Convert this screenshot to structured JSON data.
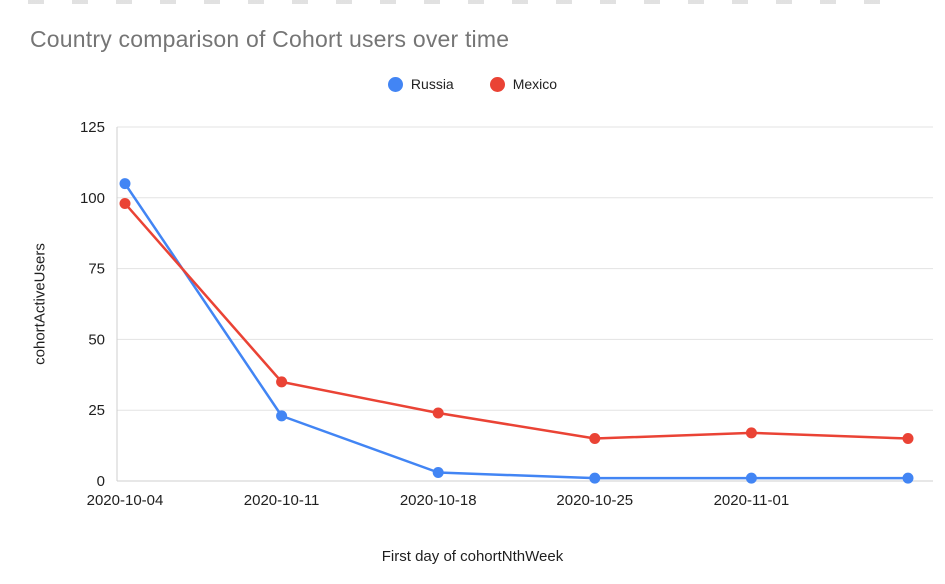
{
  "chart_data": {
    "type": "line",
    "title": "Country comparison of Cohort users over time",
    "xlabel": "First day of cohortNthWeek",
    "ylabel": "cohortActiveUsers",
    "categories": [
      "2020-10-04",
      "2020-10-11",
      "2020-10-18",
      "2020-10-25",
      "2020-11-01",
      ""
    ],
    "series": [
      {
        "name": "Russia",
        "color": "#4285f4",
        "values": [
          105,
          23,
          3,
          1,
          1,
          1
        ]
      },
      {
        "name": "Mexico",
        "color": "#ea4335",
        "values": [
          98,
          35,
          24,
          15,
          17,
          15
        ]
      }
    ],
    "y_ticks": [
      0,
      25,
      50,
      75,
      100,
      125
    ],
    "ylim": [
      0,
      125
    ],
    "grid": "horizontal",
    "legend_position": "top-center",
    "colors": {
      "title_text": "#757575",
      "axis_text": "#1f1f1f",
      "gridline": "#e3e3e3",
      "axis_line": "#cfcfcf"
    }
  }
}
